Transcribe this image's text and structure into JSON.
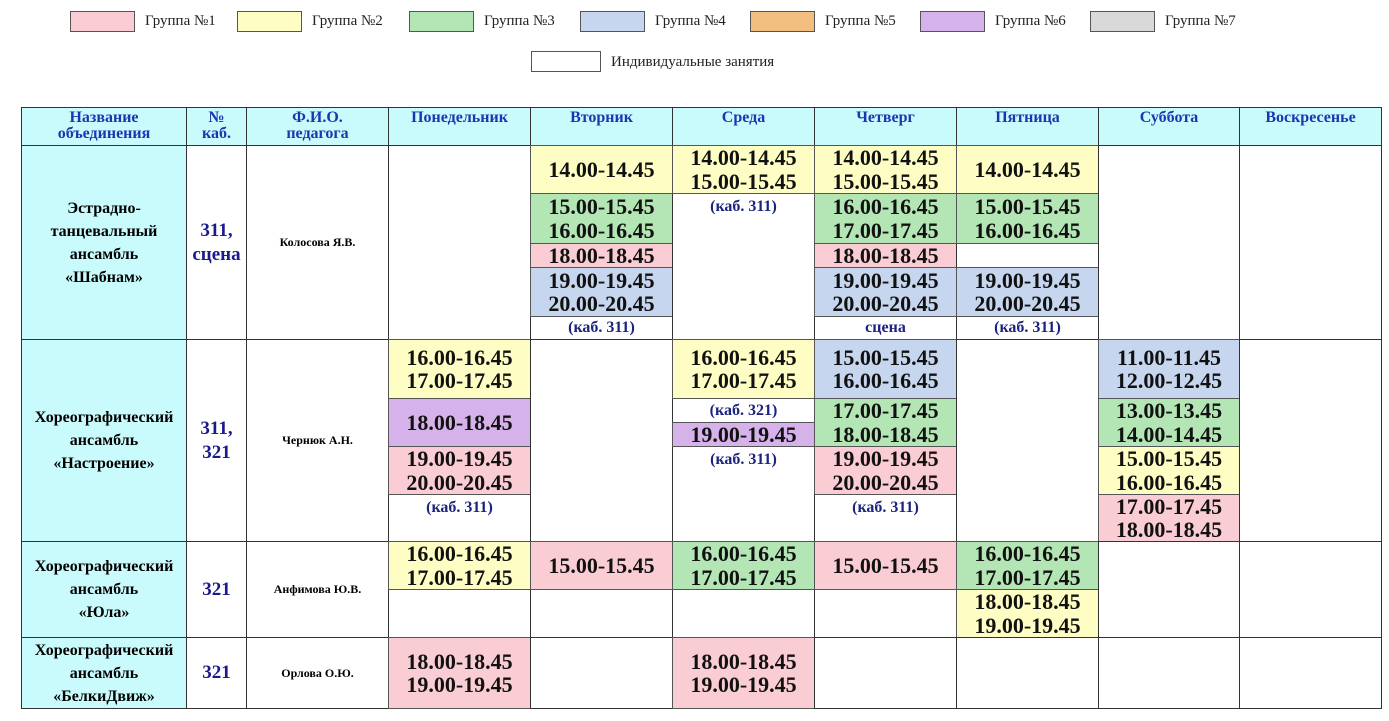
{
  "legend": {
    "groups": [
      {
        "label": "Группа №1",
        "color": "#f9cdd3"
      },
      {
        "label": "Группа №2",
        "color": "#fefec4"
      },
      {
        "label": "Группа №3",
        "color": "#b4e5b4"
      },
      {
        "label": "Группа №4",
        "color": "#c6d6ee"
      },
      {
        "label": "Группа №5",
        "color": "#f2bf80"
      },
      {
        "label": "Группа №6",
        "color": "#d5b3ea"
      },
      {
        "label": "Группа №7",
        "color": "#d9d9d9"
      }
    ],
    "individual": {
      "label": "Индивидуальные занятия",
      "color": "#ffffff"
    }
  },
  "table": {
    "headers": [
      [
        "Название",
        "объединения"
      ],
      [
        "№",
        "каб."
      ],
      [
        "Ф.И.О.",
        "педагога"
      ],
      [
        "Понедельник"
      ],
      [
        "Вторник"
      ],
      [
        "Среда"
      ],
      [
        "Четверг"
      ],
      [
        "Пятница"
      ],
      [
        "Суббота"
      ],
      [
        "Воскресенье"
      ]
    ],
    "rows": [
      {
        "name": [
          "Эстрадно-",
          "танцевальный",
          "ансамбль",
          "«Шабнам»"
        ],
        "room": [
          "311,",
          "сцена"
        ],
        "teacher": "Колосова Я.В.",
        "days": [
          [],
          [
            {
              "color": "#fefec4",
              "lines": [
                "14.00-14.45"
              ]
            },
            {
              "color": "#b4e5b4",
              "lines": [
                "15.00-15.45",
                "16.00-16.45"
              ]
            },
            {
              "color": "#f9cdd3",
              "lines": [
                "18.00-18.45"
              ]
            },
            {
              "color": "#c6d6ee",
              "lines": [
                "19.00-19.45",
                "20.00-20.45"
              ]
            },
            {
              "lines": [
                "(каб. 311)"
              ]
            }
          ],
          [
            {
              "color": "#fefec4",
              "lines": [
                "14.00-14.45",
                "15.00-15.45"
              ]
            },
            {
              "lines": [
                "(каб. 311)"
              ]
            }
          ],
          [
            {
              "color": "#fefec4",
              "lines": [
                "14.00-14.45",
                "15.00-15.45"
              ]
            },
            {
              "color": "#b4e5b4",
              "lines": [
                "16.00-16.45",
                "17.00-17.45"
              ]
            },
            {
              "color": "#f9cdd3",
              "lines": [
                "18.00-18.45"
              ]
            },
            {
              "color": "#c6d6ee",
              "lines": [
                "19.00-19.45",
                "20.00-20.45"
              ]
            },
            {
              "lines": [
                "сцена"
              ]
            }
          ],
          [
            {
              "color": "#fefec4",
              "lines": [
                "14.00-14.45"
              ]
            },
            {
              "color": "#b4e5b4",
              "lines": [
                "15.00-15.45",
                "16.00-16.45"
              ]
            },
            {
              "color": "#c6d6ee",
              "lines": [
                "19.00-19.45",
                "20.00-20.45"
              ]
            },
            {
              "lines": [
                "(каб. 311)"
              ]
            }
          ],
          [],
          []
        ]
      },
      {
        "name": [
          "Хореографический",
          "ансамбль",
          "«Настроение»"
        ],
        "room": [
          "311,",
          "321"
        ],
        "teacher": "Чернюк  А.Н.",
        "days": [
          [
            {
              "color": "#fefec4",
              "lines": [
                "16.00-16.45",
                "17.00-17.45"
              ]
            },
            {
              "color": "#d5b3ea",
              "lines": [
                "18.00-18.45"
              ]
            },
            {
              "color": "#f9cdd3",
              "lines": [
                "19.00-19.45",
                "20.00-20.45"
              ]
            },
            {
              "lines": [
                "(каб. 311)"
              ]
            }
          ],
          [],
          [
            {
              "color": "#fefec4",
              "lines": [
                "16.00-16.45",
                "17.00-17.45"
              ]
            },
            {
              "lines": [
                "(каб. 321)"
              ]
            },
            {
              "color": "#d5b3ea",
              "lines": [
                "19.00-19.45"
              ]
            },
            {
              "lines": [
                "(каб. 311)"
              ]
            }
          ],
          [
            {
              "color": "#c6d6ee",
              "lines": [
                "15.00-15.45",
                "16.00-16.45"
              ]
            },
            {
              "color": "#b4e5b4",
              "lines": [
                "17.00-17.45",
                "18.00-18.45"
              ]
            },
            {
              "color": "#f9cdd3",
              "lines": [
                "19.00-19.45",
                "20.00-20.45"
              ]
            },
            {
              "lines": [
                "(каб. 311)"
              ]
            }
          ],
          [],
          [
            {
              "color": "#c6d6ee",
              "lines": [
                "11.00-11.45",
                "12.00-12.45"
              ]
            },
            {
              "color": "#b4e5b4",
              "lines": [
                "13.00-13.45",
                "14.00-14.45"
              ]
            },
            {
              "color": "#fefec4",
              "lines": [
                "15.00-15.45",
                "16.00-16.45"
              ]
            },
            {
              "color": "#f9cdd3",
              "lines": [
                "17.00-17.45",
                "18.00-18.45"
              ]
            }
          ],
          []
        ]
      },
      {
        "name": [
          "Хореографический",
          "ансамбль",
          "«Юла»"
        ],
        "room": [
          "321"
        ],
        "teacher": "Анфимова Ю.В.",
        "days": [
          [
            {
              "color": "#fefec4",
              "lines": [
                "16.00-16.45",
                "17.00-17.45"
              ]
            }
          ],
          [
            {
              "color": "#f9cdd3",
              "lines": [
                "15.00-15.45"
              ]
            }
          ],
          [
            {
              "color": "#b4e5b4",
              "lines": [
                "16.00-16.45",
                "17.00-17.45"
              ]
            }
          ],
          [
            {
              "color": "#f9cdd3",
              "lines": [
                "15.00-15.45"
              ]
            }
          ],
          [
            {
              "color": "#b4e5b4",
              "lines": [
                "16.00-16.45",
                "17.00-17.45"
              ]
            },
            {
              "color": "#fefec4",
              "lines": [
                "18.00-18.45",
                "19.00-19.45"
              ]
            }
          ],
          [],
          []
        ]
      },
      {
        "name": [
          "Хореографический",
          "ансамбль",
          "«БелкиДвиж»"
        ],
        "room": [
          "321"
        ],
        "teacher": "Орлова О.Ю.",
        "days": [
          [
            {
              "color": "#f9cdd3",
              "lines": [
                "18.00-18.45",
                "19.00-19.45"
              ]
            }
          ],
          [],
          [
            {
              "color": "#f9cdd3",
              "lines": [
                "18.00-18.45",
                "19.00-19.45"
              ]
            }
          ],
          [],
          [],
          [],
          []
        ]
      }
    ]
  }
}
